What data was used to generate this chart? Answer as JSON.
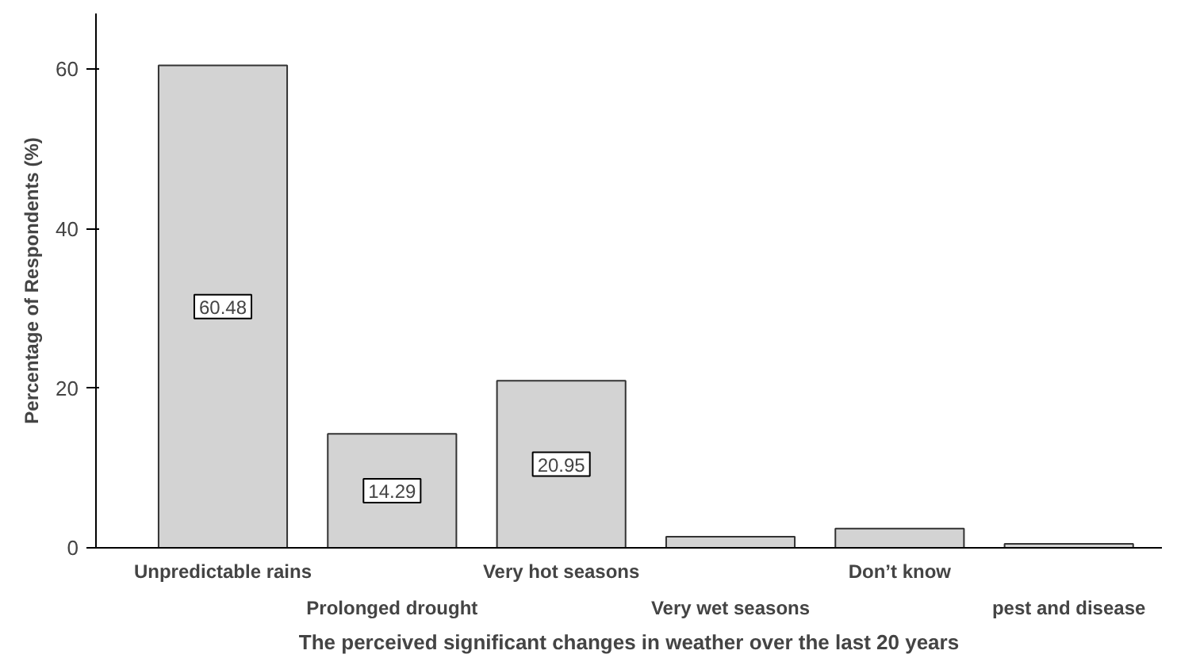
{
  "chart_data": {
    "type": "bar",
    "xlabel": "The perceived significant changes in weather over the last 20 years",
    "ylabel": "Percentage of Respondents (%)",
    "categories": [
      "Unpredictable rains",
      "Prolonged drought",
      "Very hot seasons",
      "Very wet seasons",
      "Don’t know",
      "pest and disease"
    ],
    "values": [
      60.48,
      14.29,
      20.95,
      1.4,
      2.4,
      0.5
    ],
    "value_labels": [
      "60.48",
      "14.29",
      "20.95",
      null,
      null,
      null
    ],
    "color": "#d3d3d3",
    "ylim": [
      0,
      67
    ],
    "yticks": [
      0,
      20,
      40,
      60
    ],
    "grid": false
  }
}
